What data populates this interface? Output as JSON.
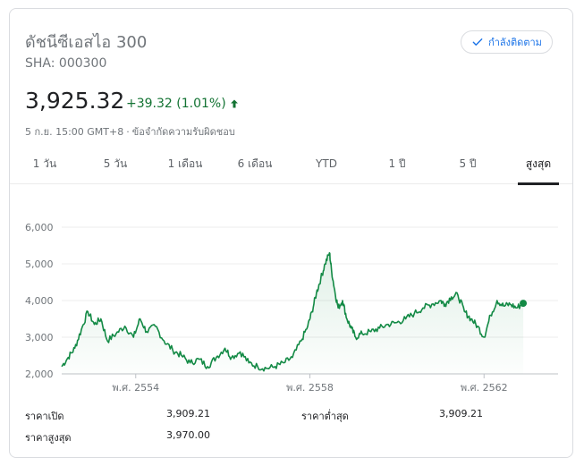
{
  "stock": {
    "name": "ดัชนีซีเอสไอ 300",
    "ticker": "SHA: 000300",
    "follow_label": "กำลังติดตาม",
    "price": "3,925.32",
    "change": "+39.32 (1.01%)",
    "timestamp": "5 ก.ย. 15:00 GMT+8",
    "separator": "·",
    "disclaimer": "ข้อจำกัดความรับผิดชอบ"
  },
  "tabs": [
    {
      "label": "1 วัน"
    },
    {
      "label": "5 วัน"
    },
    {
      "label": "1 เดือน"
    },
    {
      "label": "6 เดือน"
    },
    {
      "label": "YTD"
    },
    {
      "label": "1 ปี"
    },
    {
      "label": "5 ปี"
    },
    {
      "label": "สูงสุด"
    }
  ],
  "active_tab": "สูงสุด",
  "colors": {
    "up": "#137333",
    "line": "#138a45",
    "accent": "#1a73e8"
  },
  "chart_data": {
    "type": "area",
    "x_tick_labels": [
      "พ.ศ. 2554",
      "พ.ศ. 2558",
      "พ.ศ. 2562"
    ],
    "x_tick_years": [
      2554,
      2558,
      2562
    ],
    "x_range": [
      2552.3,
      2563.7
    ],
    "y_tick_labels": [
      "2,000",
      "3,000",
      "4,000",
      "5,000",
      "6,000"
    ],
    "ylim": [
      2000,
      6000
    ],
    "grid": "horizontal",
    "series": [
      {
        "x": [
          2552.3,
          2552.45,
          2552.6,
          2552.75,
          2552.9,
          2553.05,
          2553.2,
          2553.35,
          2553.55,
          2553.75,
          2553.95,
          2554.1,
          2554.25,
          2554.45,
          2554.65,
          2554.85,
          2555.05,
          2555.25,
          2555.45,
          2555.65,
          2555.85,
          2556.05,
          2556.2,
          2556.4,
          2556.6,
          2556.8,
          2557.0,
          2557.2,
          2557.4,
          2557.6,
          2557.8,
          2557.95,
          2558.05,
          2558.15,
          2558.25,
          2558.35,
          2558.45,
          2558.5,
          2558.58,
          2558.65,
          2558.75,
          2558.85,
          2558.95,
          2559.05,
          2559.2,
          2559.4,
          2559.6,
          2559.8,
          2560.0,
          2560.2,
          2560.4,
          2560.6,
          2560.8,
          2561.0,
          2561.1,
          2561.25,
          2561.4,
          2561.55,
          2561.7,
          2561.85,
          2562.0,
          2562.15,
          2562.3,
          2562.45,
          2562.6,
          2562.75,
          2562.9
        ],
        "y": [
          2200,
          2450,
          2700,
          3200,
          3700,
          3350,
          3500,
          2900,
          3100,
          3300,
          3000,
          3500,
          3150,
          3300,
          2900,
          2650,
          2500,
          2300,
          2400,
          2200,
          2450,
          2700,
          2450,
          2600,
          2300,
          2200,
          2150,
          2200,
          2300,
          2450,
          2900,
          3300,
          3700,
          4200,
          4600,
          5000,
          5300,
          4800,
          4200,
          3800,
          4000,
          3500,
          3250,
          3000,
          3100,
          3150,
          3250,
          3350,
          3400,
          3500,
          3650,
          3800,
          3900,
          4000,
          3900,
          4100,
          4150,
          3700,
          3500,
          3300,
          3000,
          3600,
          4000,
          3850,
          3900,
          3800,
          3925
        ]
      }
    ]
  },
  "stats": {
    "open_label": "ราคาเปิด",
    "open_value": "3,909.21",
    "low_label": "ราคาต่ำสุด",
    "low_value": "3,909.21",
    "high_label": "ราคาสูงสุด",
    "high_value": "3,970.00"
  }
}
